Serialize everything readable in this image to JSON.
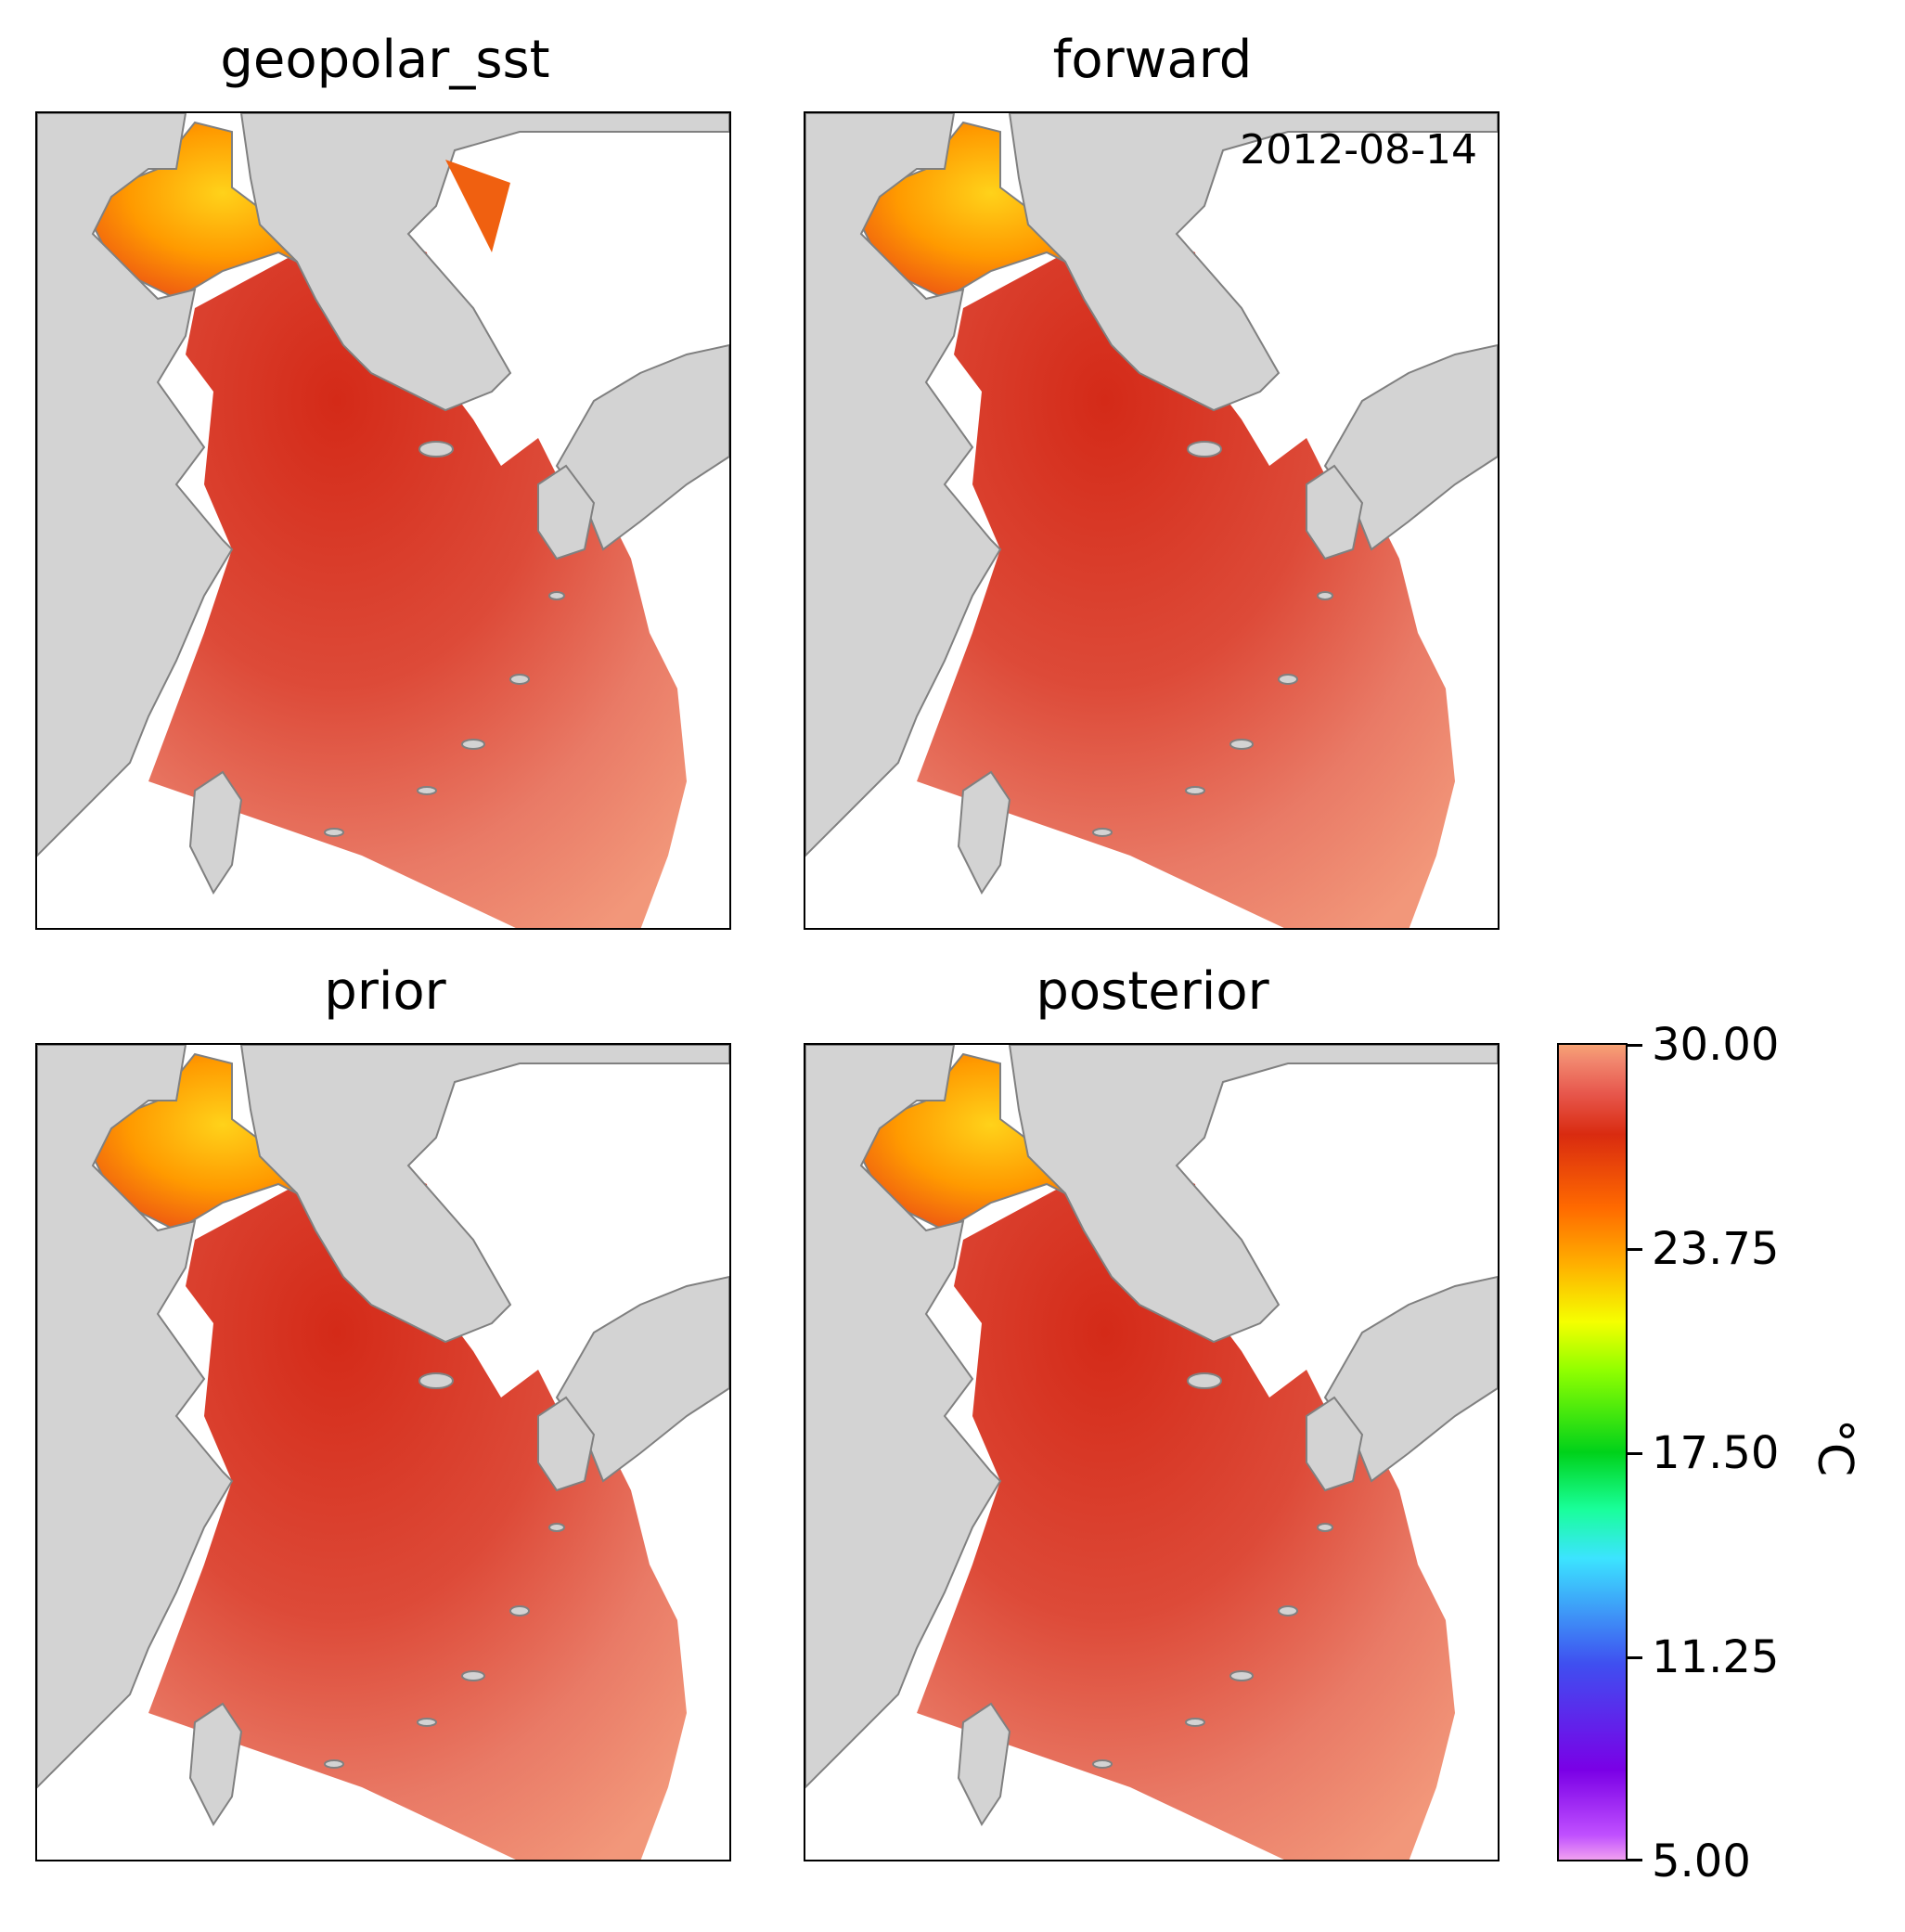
{
  "panels": [
    {
      "title": "geopolar_sst"
    },
    {
      "title": "forward",
      "date": "2012-08-14"
    },
    {
      "title": "prior"
    },
    {
      "title": "posterior"
    }
  ],
  "colorbar": {
    "ticks": [
      "30.00",
      "23.75",
      "17.50",
      "11.25",
      "5.00"
    ],
    "unit": "°C",
    "range": [
      5.0,
      30.0
    ]
  },
  "colors": {
    "land": "#d3d3d3",
    "coast": "#808080",
    "warm_sea": "#e8705e",
    "hot_sea": "#d8321e",
    "bohai_cool": "#ffb000"
  }
}
